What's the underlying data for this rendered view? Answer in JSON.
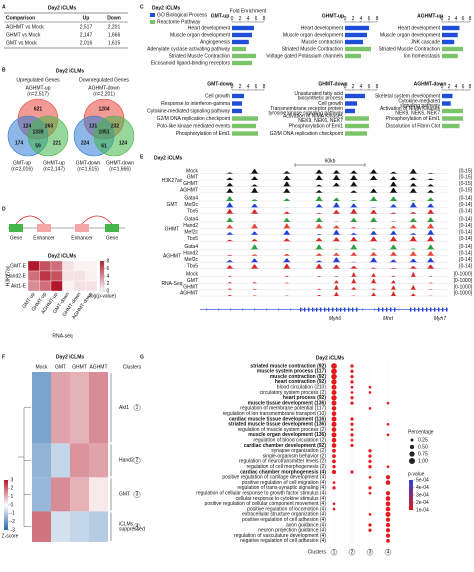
{
  "panel_a": {
    "label": "A",
    "title": "Day2 iCLMs",
    "header": [
      "Comparison",
      "Up",
      "Down"
    ],
    "rows": [
      [
        "AGHMT vs Mock",
        "2,517",
        "2,201"
      ],
      [
        "GHMT vs Mock",
        "2,147",
        "1,666"
      ],
      [
        "GMT vs Mock",
        "2,016",
        "1,615"
      ]
    ]
  },
  "panel_b": {
    "label": "B",
    "title": "Day2 iCLMs",
    "venns": [
      {
        "title": "Upregulated Genes",
        "sets": [
          {
            "name": "AGHMT-up",
            "count": "(n=2,517)",
            "color": "#e8473a"
          },
          {
            "name": "GMT-up",
            "count": "(n=2,016)",
            "color": "#2e7bd6"
          },
          {
            "name": "GHMT-up",
            "count": "(n=2,147)",
            "color": "#43b649"
          }
        ],
        "regions": [
          "621",
          "174",
          "221",
          "124",
          "263",
          "59",
          "1339"
        ]
      },
      {
        "title": "Downregulated Genes",
        "sets": [
          {
            "name": "AGHMT-down",
            "count": "(n=2,201)",
            "color": "#e8473a"
          },
          {
            "name": "GMT-down",
            "count": "(n=1,615)",
            "color": "#2e7bd6"
          },
          {
            "name": "GHMT-down",
            "count": "(n=1,666)",
            "color": "#43b649"
          }
        ],
        "regions": [
          "1204",
          "224",
          "124",
          "131",
          "232",
          "61",
          "1051"
        ]
      }
    ]
  },
  "panel_c": {
    "label": "C",
    "title": "Day2 iCLMs",
    "legend": [
      {
        "name": "GO Biological Process",
        "color": "#1f4fd8"
      },
      {
        "name": "Reactome Pathway",
        "color": "#7cc46a"
      }
    ],
    "axis_label": "Fold Enrichment",
    "xlim": [
      0,
      8
    ],
    "xticks": [
      0,
      2,
      4,
      6,
      8
    ],
    "charts": [
      {
        "title": "GMT-up",
        "terms": [
          "Heart development",
          "Muscle organ development",
          "Angiogenesis",
          "Adenylate cyclase activating pathway",
          "Striated Muscle Contraction",
          "Eicosanoid ligand-binding receptors"
        ],
        "values": [
          5.5,
          5,
          4.2,
          3.5,
          6,
          5
        ],
        "colors": [
          "#1f4fd8",
          "#1f4fd8",
          "#1f4fd8",
          "#7cc46a",
          "#7cc46a",
          "#7cc46a"
        ]
      },
      {
        "title": "GHMT-up",
        "terms": [
          "Heart development",
          "Muscle organ development",
          "Muscle contraction",
          "Striated Muscle Contraction",
          "Voltage gated Potassium channels"
        ],
        "values": [
          6,
          5.5,
          4.5,
          6.5,
          4
        ],
        "colors": [
          "#1f4fd8",
          "#1f4fd8",
          "#1f4fd8",
          "#7cc46a",
          "#7cc46a"
        ]
      },
      {
        "title": "AGHMT-up",
        "terms": [
          "Heart development",
          "Muscle organ development",
          "JNK cascade",
          "Striated Muscle Contraction",
          "Ion homeostasis"
        ],
        "values": [
          5,
          4.5,
          3.5,
          6,
          4.5
        ],
        "colors": [
          "#1f4fd8",
          "#1f4fd8",
          "#1f4fd8",
          "#7cc46a",
          "#7cc46a"
        ]
      },
      {
        "title": "GMT-down",
        "terms": [
          "Cell growth",
          "Response to interferon-gamma",
          "Cytokine-mediated signaling pathway",
          "G2/M DNA replication checkpoint",
          "Polo-like kinase mediated events",
          "Phosphorylation of Emi1"
        ],
        "values": [
          3,
          2.5,
          2.5,
          6.5,
          6,
          6.5
        ],
        "colors": [
          "#1f4fd8",
          "#1f4fd8",
          "#1f4fd8",
          "#7cc46a",
          "#7cc46a",
          "#7cc46a"
        ]
      },
      {
        "title": "GHMT-down",
        "terms": [
          [
            "Unsaturated fatty acid",
            "biosynthetic process"
          ],
          "Cell growth",
          [
            "Transmembrane receptor protein",
            "tyrosine kinase signaling pathway"
          ],
          [
            "Activation of NIMA Kinases",
            "NEK9, NEK6, NEK7"
          ],
          "Phosphorylation of Emi1",
          "G2/M DNA replication checkpoint"
        ],
        "values": [
          5,
          3,
          2.5,
          6,
          6,
          5.5
        ],
        "colors": [
          "#1f4fd8",
          "#1f4fd8",
          "#1f4fd8",
          "#7cc46a",
          "#7cc46a",
          "#7cc46a"
        ]
      },
      {
        "title": "AGHMT-down",
        "terms": [
          "Skeletal system development",
          [
            "Cytokine-mediated",
            "signaling pathway"
          ],
          [
            "Activation of NIMA Kinases",
            "NEK9, NEK6, NEK7"
          ],
          "Phosphorylation of Emi1",
          "Dissolution of Fibrin Clot"
        ],
        "values": [
          3,
          2.5,
          6,
          6,
          5
        ],
        "colors": [
          "#1f4fd8",
          "#1f4fd8",
          "#7cc46a",
          "#7cc46a",
          "#7cc46a"
        ]
      }
    ]
  },
  "panel_d": {
    "label": "D",
    "diagram": [
      "Gene",
      "Enhancer",
      "Enhancer",
      "Gene"
    ],
    "title": "Day2 iCLMs",
    "y_label": "H3K27ac",
    "x_label": "RNA-seq",
    "rows": [
      "GMT-E",
      "Hand2-E",
      "Akt1-E"
    ],
    "columns": [
      "GMT-up",
      "GHMT-up",
      "AGHMT-up",
      "GMT-down",
      "GHMT-down",
      "AGHMT-down"
    ],
    "values": [
      [
        8,
        6,
        5,
        1,
        0.5,
        0.5
      ],
      [
        5,
        7,
        6,
        1,
        1,
        0.5
      ],
      [
        4,
        5,
        8,
        0.5,
        1,
        1
      ]
    ],
    "colorbar_label": "-log(p-value)",
    "vlim": [
      0,
      8
    ],
    "vticks": [
      0,
      2,
      4,
      6,
      8
    ],
    "color": "#b2182b"
  },
  "panel_e": {
    "label": "E",
    "title": "Day2 iCLMs",
    "scale": "60kb",
    "groups": [
      {
        "label": "H3K27ac",
        "tracks": [
          {
            "name": "Mock",
            "range": "[0-15]",
            "color": "#111111"
          },
          {
            "name": "GMT",
            "range": "[0-15]",
            "color": "#111111"
          },
          {
            "name": "GHMT",
            "range": "[0-15]",
            "color": "#111111"
          },
          {
            "name": "AGHMT",
            "range": "[0-15]",
            "color": "#111111"
          }
        ]
      },
      {
        "label": "GMT",
        "tracks": [
          {
            "name": "Gata4",
            "range": "[0-14]",
            "color": "#2e9e3e"
          },
          {
            "name": "Mef2c",
            "range": "[0-14]",
            "color": "#1f3fd8"
          },
          {
            "name": "Tbx5",
            "range": "[0-14]",
            "color": "#d62728"
          }
        ]
      },
      {
        "label": "GHMT",
        "tracks": [
          {
            "name": "Gata4",
            "range": "[0-14]",
            "color": "#2e9e3e"
          },
          {
            "name": "Hand2",
            "range": "[0-14]",
            "color": "#e8473a"
          },
          {
            "name": "Mef2c",
            "range": "[0-14]",
            "color": "#1f3fd8"
          },
          {
            "name": "Tbx5",
            "range": "[0-14]",
            "color": "#d62728"
          }
        ]
      },
      {
        "label": "AGHMT",
        "tracks": [
          {
            "name": "Gata4",
            "range": "[0-14]",
            "color": "#2e9e3e"
          },
          {
            "name": "Hand2",
            "range": "[0-14]",
            "color": "#e8473a"
          },
          {
            "name": "Mef2c",
            "range": "[0-14]",
            "color": "#1f3fd8"
          },
          {
            "name": "Tbx5",
            "range": "[0-14]",
            "color": "#d62728"
          }
        ]
      },
      {
        "label": "RNA-Seq",
        "tracks": [
          {
            "name": "Mock",
            "range": "[0-1000]",
            "color": "#d62728"
          },
          {
            "name": "GMT",
            "range": "[0-1000]",
            "color": "#d62728"
          },
          {
            "name": "GHMT",
            "range": "[0-1000]",
            "color": "#d62728"
          },
          {
            "name": "AGHMT",
            "range": "[0-1000]",
            "color": "#d62728"
          }
        ]
      }
    ],
    "genes": [
      "Myh6",
      "Mhrt",
      "Myh7"
    ]
  },
  "panel_f": {
    "label": "F",
    "title": "Day2 iCLMs",
    "columns": [
      "Mock",
      "GMT",
      "GHMT",
      "AGHMT"
    ],
    "clusters_label": "Clusters",
    "clusters": [
      {
        "number": 1,
        "label": "Akt1",
        "values": [
          -1.8,
          1.2,
          1.0,
          1.5
        ]
      },
      {
        "number": 2,
        "label": "Hand2",
        "values": [
          -1.5,
          -0.8,
          1.4,
          1.2
        ]
      },
      {
        "number": 3,
        "label": "GMT",
        "values": [
          -1.4,
          1.5,
          1.0,
          0.3
        ]
      },
      {
        "number": 4,
        "label": [
          "iCLMs",
          "suppressed"
        ],
        "values": [
          1.8,
          -0.6,
          -0.8,
          -1.0
        ]
      }
    ],
    "colorbar_label": "Z-score",
    "vlim": [
      -3,
      3
    ],
    "vticks": [
      3,
      2,
      1,
      0,
      -1,
      -2,
      -3
    ]
  },
  "panel_g": {
    "label": "G",
    "title": "Day2 iCLMs",
    "dot_color": "#e41a1c",
    "highlight_color": "#d62728",
    "clusters": [
      1,
      2,
      3,
      4
    ],
    "clusters_label": "Clusters",
    "terms": [
      {
        "label": "striated muscle contraction (92)",
        "highlight": true,
        "sizes": [
          0.9,
          0.3,
          null,
          null
        ]
      },
      {
        "label": "muscle system process (117)",
        "highlight": true,
        "sizes": [
          0.9,
          0.3,
          null,
          null
        ]
      },
      {
        "label": "muscle contraction (92)",
        "highlight": true,
        "sizes": [
          0.9,
          0.3,
          null,
          null
        ]
      },
      {
        "label": "heart contraction (92)",
        "highlight": true,
        "sizes": [
          0.8,
          0.3,
          null,
          null
        ]
      },
      {
        "label": "blood circulation (210)",
        "highlight": false,
        "sizes": [
          0.7,
          0.2,
          0.2,
          null
        ]
      },
      {
        "label": "circulatory system process (2)",
        "highlight": false,
        "sizes": [
          0.7,
          0.2,
          0.2,
          null
        ]
      },
      {
        "label": "heart process (92)",
        "highlight": true,
        "sizes": [
          0.8,
          0.3,
          null,
          null
        ]
      },
      {
        "label": "muscle tissue development (136)",
        "highlight": true,
        "sizes": [
          0.7,
          0.3,
          null,
          0.2
        ]
      },
      {
        "label": "regulation of membrane potential (117)",
        "highlight": false,
        "sizes": [
          0.6,
          null,
          0.2,
          null
        ]
      },
      {
        "label": "regulation of ion transmembrane transport (10)",
        "highlight": false,
        "sizes": [
          0.6,
          null,
          null,
          null
        ]
      },
      {
        "label": "cardiac muscle tissue development (116)",
        "highlight": true,
        "sizes": [
          0.7,
          0.3,
          null,
          null
        ]
      },
      {
        "label": "striated muscle tissue development (136)",
        "highlight": true,
        "sizes": [
          0.7,
          0.3,
          null,
          0.2
        ]
      },
      {
        "label": "regulation of muscle system process (2)",
        "highlight": false,
        "sizes": [
          0.6,
          0.2,
          null,
          null
        ]
      },
      {
        "label": "muscle organ development (136)",
        "highlight": true,
        "sizes": [
          0.7,
          0.3,
          null,
          0.2
        ]
      },
      {
        "label": "regulation of blood circulation (2)",
        "highlight": false,
        "sizes": [
          0.6,
          0.2,
          null,
          null
        ]
      },
      {
        "label": "cardiac chamber development (92)",
        "highlight": true,
        "sizes": [
          0.6,
          0.3,
          null,
          null
        ]
      },
      {
        "label": "synapse organization (2)",
        "highlight": false,
        "sizes": [
          0.4,
          null,
          0.3,
          null
        ]
      },
      {
        "label": "single-organism behavior (2)",
        "highlight": false,
        "sizes": [
          0.4,
          null,
          0.3,
          null
        ]
      },
      {
        "label": "regulation of neurotransmitter levels (2)",
        "highlight": false,
        "sizes": [
          0.4,
          null,
          0.3,
          null
        ]
      },
      {
        "label": "regulation of cell morphogenesis (2)",
        "highlight": false,
        "sizes": [
          0.3,
          null,
          0.3,
          0.2
        ]
      },
      {
        "label": "cardiac chamber morphogenesis (4)",
        "highlight": true,
        "sizes": [
          0.5,
          0.3,
          null,
          null
        ]
      },
      {
        "label": "positive regulation of cartilage development (4)",
        "highlight": false,
        "sizes": [
          null,
          null,
          0.2,
          0.5
        ]
      },
      {
        "label": "positive regulation of cell migration (4)",
        "highlight": false,
        "sizes": [
          0.2,
          null,
          null,
          0.6
        ]
      },
      {
        "label": "regulation of trans-synaptic signaling (4)",
        "highlight": false,
        "sizes": [
          0.3,
          null,
          0.3,
          null
        ]
      },
      {
        "label": "regulation of cellular response to growth factor stimulus (4)",
        "highlight": false,
        "sizes": [
          null,
          null,
          0.2,
          0.5
        ]
      },
      {
        "label": "cellular response to cytokine stimulus (4)",
        "highlight": false,
        "sizes": [
          null,
          null,
          null,
          0.6
        ]
      },
      {
        "label": "positive regulation of cellular component movement (4)",
        "highlight": false,
        "sizes": [
          0.2,
          null,
          null,
          0.6
        ]
      },
      {
        "label": "positive regulation of locomotion (4)",
        "highlight": false,
        "sizes": [
          0.2,
          null,
          null,
          0.6
        ]
      },
      {
        "label": "extracellular structure organization (4)",
        "highlight": false,
        "sizes": [
          null,
          null,
          0.2,
          0.7
        ]
      },
      {
        "label": "positive regulation of cell adhesion (4)",
        "highlight": false,
        "sizes": [
          null,
          null,
          null,
          0.5
        ]
      },
      {
        "label": "axon guidance (4)",
        "highlight": false,
        "sizes": [
          null,
          null,
          0.3,
          0.5
        ]
      },
      {
        "label": "neuron projection guidance (4)",
        "highlight": false,
        "sizes": [
          null,
          null,
          0.3,
          0.5
        ]
      },
      {
        "label": "regulation of vasculature development (4)",
        "highlight": false,
        "sizes": [
          null,
          null,
          null,
          0.5
        ]
      },
      {
        "label": "negative regulation of cell adhesion (4)",
        "highlight": false,
        "sizes": [
          null,
          null,
          null,
          0.4
        ]
      }
    ],
    "size_legend": {
      "title": "Percentage",
      "values": [
        {
          "value": 0.25,
          "label": "0.25"
        },
        {
          "value": 0.5,
          "label": "0.50"
        },
        {
          "value": 0.75,
          "label": "0.75"
        },
        {
          "value": 1,
          "label": "1.00"
        }
      ]
    },
    "p_legend": {
      "title": "p-value",
      "values": [
        {
          "value": 0.0005,
          "label": "5e-04"
        },
        {
          "value": 0.0004,
          "label": "4e-04"
        },
        {
          "value": 0.0003,
          "label": "3e-04"
        },
        {
          "value": 0.0002,
          "label": "2e-04"
        },
        {
          "value": 0.0001,
          "label": "1e-04"
        }
      ],
      "colors": [
        "#2c3fd6",
        "#e41a1c"
      ]
    }
  }
}
